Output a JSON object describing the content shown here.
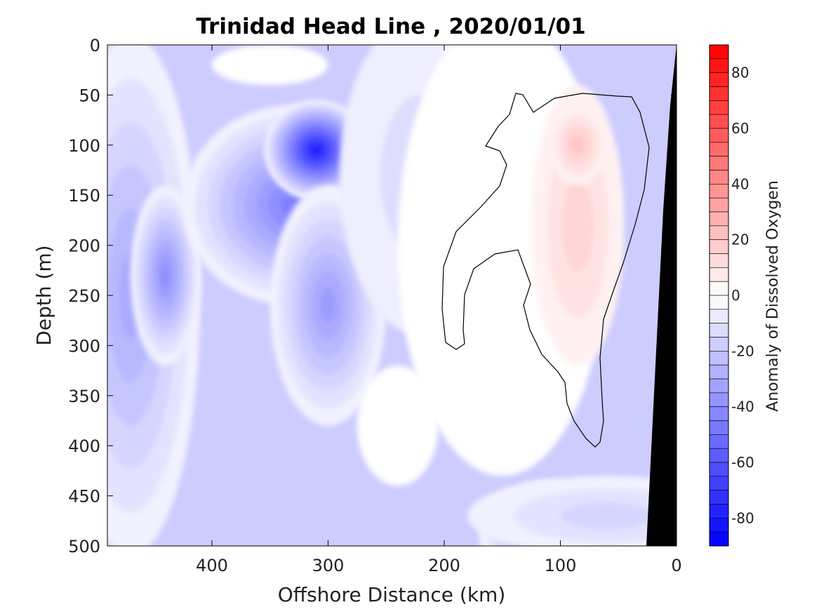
{
  "chart_data": {
    "type": "heatmap",
    "title": "Trinidad Head Line , 2020/01/01",
    "xlabel": "Offshore Distance (km)",
    "ylabel": "Depth (m)",
    "xlim": [
      490,
      0
    ],
    "ylim": [
      0,
      500
    ],
    "x_reversed": true,
    "y_reversed": true,
    "x_ticks": [
      400,
      300,
      200,
      100,
      0
    ],
    "y_ticks": [
      0,
      50,
      100,
      150,
      200,
      250,
      300,
      350,
      400,
      450,
      500
    ],
    "colorbar": {
      "label": "Anomaly of Dissolved Oxygen",
      "range": [
        -90,
        90
      ],
      "ticks": [
        80,
        60,
        40,
        20,
        0,
        -20,
        -40,
        -60,
        -80
      ],
      "level_step": 5,
      "low_color": "#0000ff",
      "mid_color": "#ffffff",
      "high_color": "#ff0000"
    },
    "features": [
      {
        "kind": "minimum",
        "x": 310,
        "y": 105,
        "value": -80
      },
      {
        "kind": "maximum",
        "x": 85,
        "y": 95,
        "value": 20
      },
      {
        "kind": "minimum",
        "x": 110,
        "y": 490,
        "value": -40
      },
      {
        "kind": "minimum",
        "x": 440,
        "y": 230,
        "value": -40
      }
    ],
    "zero_contour": true,
    "land_mask_color": "#000000",
    "grid": false
  }
}
